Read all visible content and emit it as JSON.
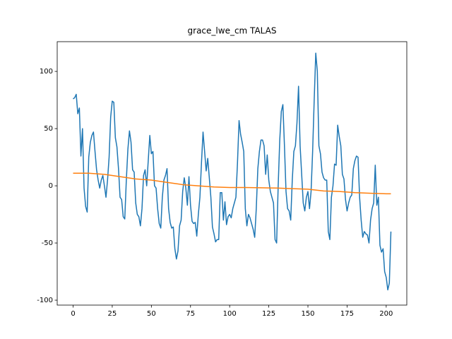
{
  "chart_data": {
    "type": "line",
    "title": "grace_lwe_cm TALAS",
    "x": [
      0,
      1,
      2,
      3,
      4,
      5,
      6,
      7,
      8,
      9,
      10,
      11,
      12,
      13,
      14,
      15,
      16,
      17,
      18,
      19,
      20,
      21,
      22,
      23,
      24,
      25,
      26,
      27,
      28,
      29,
      30,
      31,
      32,
      33,
      34,
      35,
      36,
      37,
      38,
      39,
      40,
      41,
      42,
      43,
      44,
      45,
      46,
      47,
      48,
      49,
      50,
      51,
      52,
      53,
      54,
      55,
      56,
      57,
      58,
      59,
      60,
      61,
      62,
      63,
      64,
      65,
      66,
      67,
      68,
      69,
      70,
      71,
      72,
      73,
      74,
      75,
      76,
      77,
      78,
      79,
      80,
      81,
      82,
      83,
      84,
      85,
      86,
      87,
      88,
      89,
      90,
      91,
      92,
      93,
      94,
      95,
      96,
      97,
      98,
      99,
      100,
      101,
      102,
      103,
      104,
      105,
      106,
      107,
      108,
      109,
      110,
      111,
      112,
      113,
      114,
      115,
      116,
      117,
      118,
      119,
      120,
      121,
      122,
      123,
      124,
      125,
      126,
      127,
      128,
      129,
      130,
      131,
      132,
      133,
      134,
      135,
      136,
      137,
      138,
      139,
      140,
      141,
      142,
      143,
      144,
      145,
      146,
      147,
      148,
      149,
      150,
      151,
      152,
      153,
      154,
      155,
      156,
      157,
      158,
      159,
      160,
      161,
      162,
      163,
      164,
      165,
      166,
      167,
      168,
      169,
      170,
      171,
      172,
      173,
      174,
      175,
      176,
      177,
      178,
      179,
      180,
      181,
      182,
      183,
      184,
      185,
      186,
      187,
      188,
      189,
      190,
      191,
      192,
      193,
      194,
      195,
      196,
      197,
      198,
      199,
      200,
      201,
      202,
      203
    ],
    "series": [
      {
        "color": "#1f77b4",
        "values": [
          76,
          77,
          80,
          63,
          68,
          26,
          50,
          -2,
          -18,
          -23,
          25,
          38,
          44,
          47,
          30,
          14,
          5,
          -2,
          5,
          9,
          0,
          -10,
          5,
          25,
          60,
          74,
          73,
          42,
          34,
          15,
          -10,
          -12,
          -27,
          -29,
          5,
          32,
          48,
          38,
          14,
          12,
          -15,
          -25,
          -27,
          -35,
          -20,
          9,
          14,
          0,
          22,
          44,
          28,
          30,
          0,
          -2,
          -20,
          -33,
          -37,
          -10,
          5,
          9,
          15,
          -20,
          -32,
          -37,
          -36,
          -55,
          -64,
          -57,
          -35,
          -30,
          -5,
          7,
          -2,
          -17,
          8,
          -17,
          -31,
          -33,
          -32,
          -44,
          -25,
          -10,
          20,
          47,
          30,
          13,
          24,
          7,
          -10,
          -36,
          -42,
          -49,
          -47,
          -47,
          -6,
          -6,
          -30,
          -14,
          -34,
          -27,
          -25,
          -28,
          -20,
          -15,
          -10,
          20,
          57,
          45,
          38,
          30,
          -20,
          -35,
          -25,
          -28,
          -33,
          -38,
          -45,
          -20,
          15,
          30,
          40,
          40,
          35,
          10,
          27,
          5,
          -5,
          -10,
          -15,
          -47,
          -50,
          0,
          40,
          65,
          71,
          35,
          -5,
          -20,
          -22,
          -30,
          5,
          30,
          35,
          55,
          87,
          35,
          10,
          -15,
          -22,
          -10,
          -5,
          -20,
          -5,
          30,
          75,
          116,
          100,
          35,
          28,
          12,
          7,
          5,
          5,
          -40,
          -47,
          -10,
          0,
          19,
          18,
          53,
          43,
          35,
          10,
          6,
          -12,
          -22,
          -15,
          -10,
          -8,
          15,
          22,
          26,
          25,
          -10,
          -30,
          -45,
          -40,
          -42,
          -43,
          -50,
          -30,
          -20,
          -15,
          18,
          -17,
          -10,
          -52,
          -58,
          -55,
          -75,
          -80,
          -91,
          -85,
          -40
        ]
      },
      {
        "color": "#ff7f0e",
        "x": [
          0,
          10,
          20,
          30,
          40,
          50,
          60,
          70,
          80,
          90,
          100,
          110,
          120,
          130,
          140,
          150,
          160,
          170,
          180,
          190,
          200,
          203
        ],
        "values": [
          11,
          11,
          10,
          8,
          6,
          5,
          3,
          1,
          0,
          -1,
          -1.5,
          -1.5,
          -1.7,
          -2,
          -2.5,
          -3,
          -4.5,
          -5,
          -6,
          -6.5,
          -7,
          -7
        ]
      }
    ],
    "xlim": [
      -10.15,
      213.15
    ],
    "ylim": [
      -104.3,
      126
    ],
    "xticks": [
      0,
      25,
      50,
      75,
      100,
      125,
      150,
      175,
      200
    ],
    "yticks": [
      -100,
      -50,
      0,
      50,
      100
    ]
  }
}
